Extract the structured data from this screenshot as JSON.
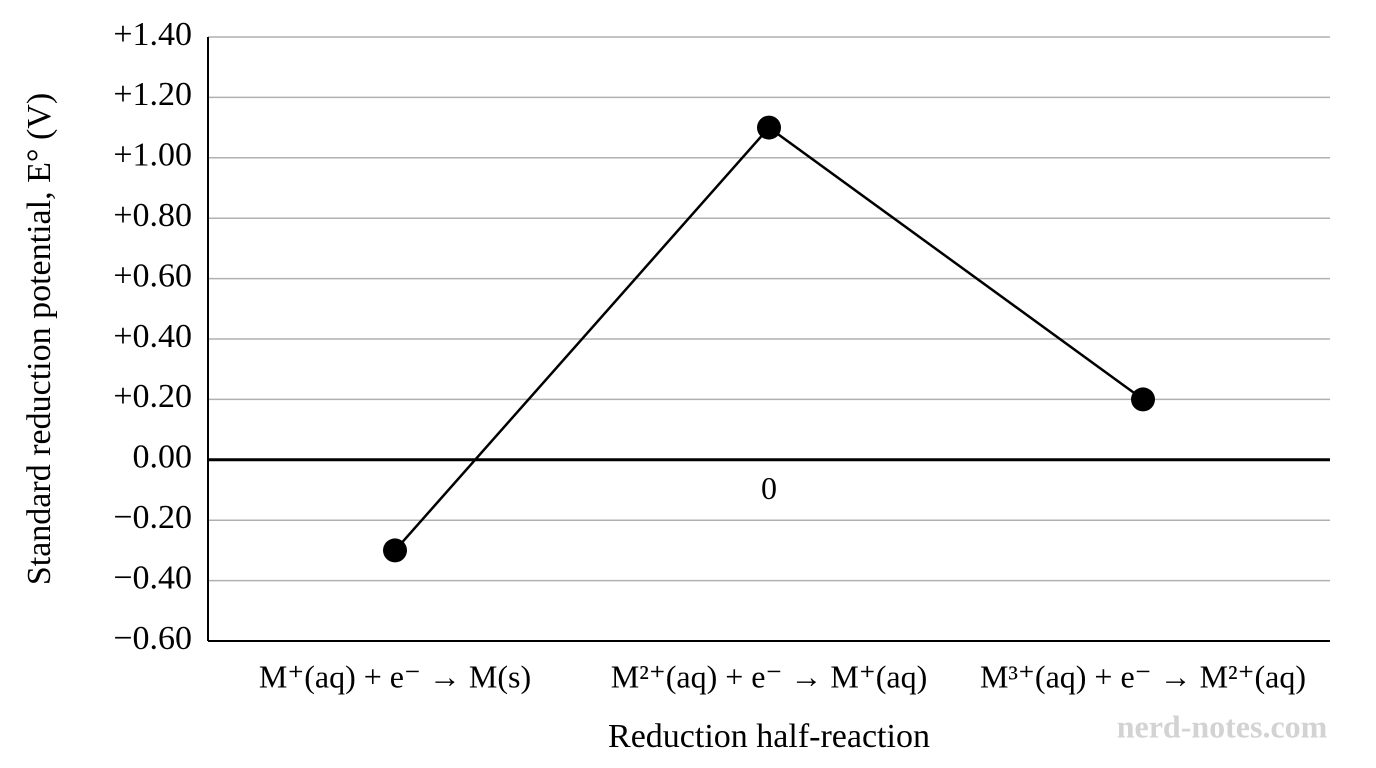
{
  "chart_data": {
    "type": "line",
    "y_label": "Standard reduction potential, E° (V)",
    "x_label": "Reduction half-reaction",
    "categories": [
      "M⁺(aq) + e⁻ → M(s)",
      "M²⁺(aq) + e⁻ → M⁺(aq)",
      "M³⁺(aq) + e⁻ → M²⁺(aq)"
    ],
    "values": [
      -0.3,
      1.1,
      0.2
    ],
    "color": "#000000",
    "ylim": [
      -0.6,
      1.4
    ],
    "yticks": [
      {
        "value": -0.6,
        "label": "−0.60"
      },
      {
        "value": -0.4,
        "label": "−0.40"
      },
      {
        "value": -0.2,
        "label": "−0.20"
      },
      {
        "value": 0,
        "label": "0.00"
      },
      {
        "value": 0.2,
        "label": "+0.20"
      },
      {
        "value": 0.4,
        "label": "+0.40"
      },
      {
        "value": 0.6,
        "label": "+0.60"
      },
      {
        "value": 0.8,
        "label": "+0.80"
      },
      {
        "value": 1.0,
        "label": "+1.00"
      },
      {
        "value": 1.2,
        "label": "+1.20"
      },
      {
        "value": 1.4,
        "label": "+1.40"
      }
    ],
    "grid": true,
    "annotation": "0",
    "watermark": "nerd-notes.com"
  }
}
